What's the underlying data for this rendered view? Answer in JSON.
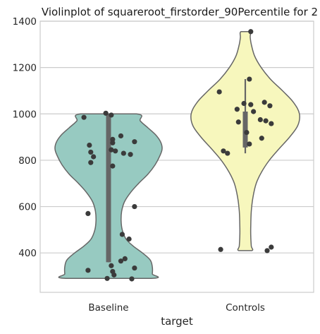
{
  "chart_data": {
    "type": "violin",
    "title": "Violinplot of squareroot_firstorder_90Percentile for 2",
    "xlabel": "target",
    "ylabel": "",
    "ylim": [
      230,
      1400
    ],
    "yticks": [
      400,
      600,
      800,
      1000,
      1200,
      1400
    ],
    "grid": "horizontal",
    "categories": [
      "Baseline",
      "Controls"
    ],
    "colors": [
      "#97cac1",
      "#f7f7bd"
    ],
    "violins": [
      {
        "category": "Baseline",
        "min": 290,
        "max": 1000,
        "quartiles": [
          360,
          1000
        ],
        "profile": [
          [
            290,
            0.78
          ],
          [
            310,
            0.8
          ],
          [
            340,
            0.8
          ],
          [
            370,
            0.76
          ],
          [
            400,
            0.62
          ],
          [
            430,
            0.45
          ],
          [
            460,
            0.32
          ],
          [
            500,
            0.25
          ],
          [
            540,
            0.23
          ],
          [
            580,
            0.24
          ],
          [
            620,
            0.29
          ],
          [
            660,
            0.4
          ],
          [
            700,
            0.55
          ],
          [
            740,
            0.72
          ],
          [
            780,
            0.85
          ],
          [
            820,
            0.94
          ],
          [
            850,
            0.98
          ],
          [
            880,
            0.95
          ],
          [
            910,
            0.86
          ],
          [
            940,
            0.72
          ],
          [
            970,
            0.58
          ],
          [
            1000,
            0.51
          ]
        ],
        "points": [
          [
            1003,
            -0.02
          ],
          [
            995,
            0.02
          ],
          [
            985,
            -0.18
          ],
          [
            905,
            0.09
          ],
          [
            890,
            0.03
          ],
          [
            880,
            0.19
          ],
          [
            875,
            0.03
          ],
          [
            865,
            -0.14
          ],
          [
            845,
            0.02
          ],
          [
            840,
            0.05
          ],
          [
            835,
            -0.13
          ],
          [
            830,
            0.11
          ],
          [
            825,
            0.16
          ],
          [
            815,
            -0.11
          ],
          [
            790,
            -0.13
          ],
          [
            775,
            0.03
          ],
          [
            600,
            0.19
          ],
          [
            570,
            -0.15
          ],
          [
            480,
            0.1
          ],
          [
            460,
            0.15
          ],
          [
            375,
            0.12
          ],
          [
            365,
            0.09
          ],
          [
            345,
            0.02
          ],
          [
            335,
            0.19
          ],
          [
            325,
            -0.15
          ],
          [
            320,
            0.03
          ],
          [
            305,
            0.04
          ],
          [
            290,
            -0.01
          ],
          [
            288,
            0.17
          ]
        ]
      },
      {
        "category": "Controls",
        "min": 410,
        "max": 1355,
        "quartiles": [
          830,
          1150
        ],
        "iqr": [
          855,
          1010
        ],
        "profile": [
          [
            410,
            0.12
          ],
          [
            430,
            0.11
          ],
          [
            470,
            0.1
          ],
          [
            520,
            0.1
          ],
          [
            580,
            0.11
          ],
          [
            640,
            0.14
          ],
          [
            700,
            0.2
          ],
          [
            750,
            0.3
          ],
          [
            800,
            0.44
          ],
          [
            850,
            0.62
          ],
          [
            900,
            0.81
          ],
          [
            950,
            0.96
          ],
          [
            1000,
            0.99
          ],
          [
            1050,
            0.88
          ],
          [
            1100,
            0.68
          ],
          [
            1150,
            0.46
          ],
          [
            1200,
            0.29
          ],
          [
            1250,
            0.17
          ],
          [
            1300,
            0.11
          ],
          [
            1330,
            0.09
          ],
          [
            1355,
            0.08
          ]
        ],
        "points": [
          [
            1355,
            0.04
          ],
          [
            1150,
            0.03
          ],
          [
            1095,
            -0.19
          ],
          [
            1050,
            0.14
          ],
          [
            1045,
            -0.01
          ],
          [
            1040,
            0.04
          ],
          [
            1035,
            0.18
          ],
          [
            1020,
            -0.06
          ],
          [
            1010,
            0.06
          ],
          [
            975,
            0.11
          ],
          [
            970,
            0.15
          ],
          [
            965,
            -0.05
          ],
          [
            958,
            0.19
          ],
          [
            920,
            0.01
          ],
          [
            895,
            0.12
          ],
          [
            870,
            0.03
          ],
          [
            840,
            -0.16
          ],
          [
            830,
            -0.13
          ],
          [
            425,
            0.19
          ],
          [
            415,
            -0.18
          ],
          [
            410,
            0.16
          ]
        ]
      }
    ]
  }
}
